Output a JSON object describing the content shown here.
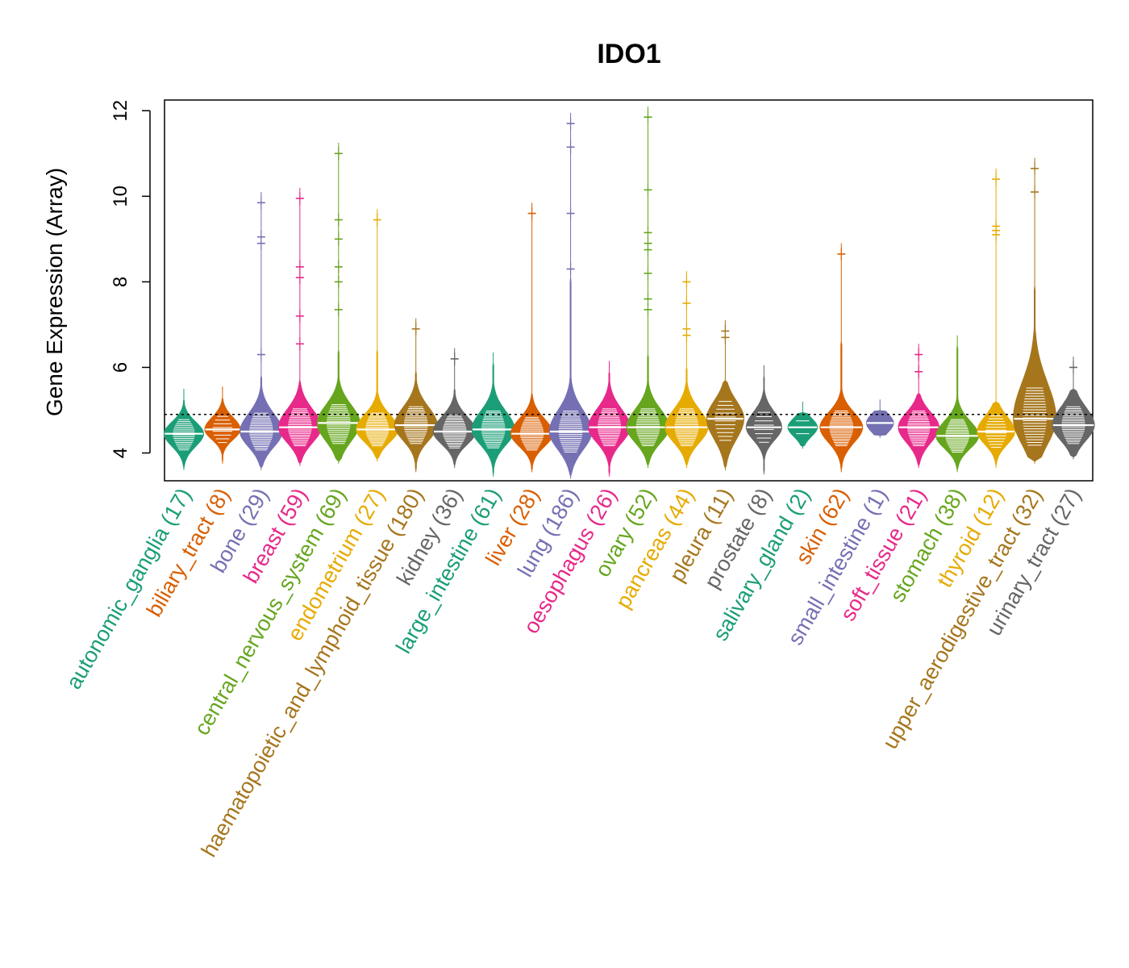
{
  "chart_data": {
    "type": "beanplot",
    "title": "IDO1",
    "ylabel": "Gene Expression (Array)",
    "ylim": [
      3.35,
      12.25
    ],
    "yticks": [
      4,
      6,
      8,
      10,
      12
    ],
    "reference_line": 4.9,
    "grid": false,
    "legend": "none",
    "categories": [
      {
        "name": "autonomic_ganglia",
        "n": "17",
        "label": "autonomic_ganglia (17)",
        "color": "#1B9E77",
        "median": 4.45,
        "q1": 4.2,
        "q3": 4.65,
        "min": 3.65,
        "max": 5.25,
        "outliers": []
      },
      {
        "name": "biliary_tract",
        "n": "8",
        "label": "biliary_tract (8)",
        "color": "#D95F02",
        "median": 4.55,
        "q1": 4.35,
        "q3": 4.75,
        "min": 3.8,
        "max": 5.3,
        "outliers": []
      },
      {
        "name": "bone",
        "n": "29",
        "label": "bone (29)",
        "color": "#7570B3",
        "median": 4.5,
        "q1": 4.2,
        "q3": 4.8,
        "min": 3.65,
        "max": 5.8,
        "outliers": [
          6.3,
          8.9,
          9.05,
          9.85
        ]
      },
      {
        "name": "breast",
        "n": "59",
        "label": "breast (59)",
        "color": "#E7298A",
        "median": 4.6,
        "q1": 4.3,
        "q3": 4.9,
        "min": 3.75,
        "max": 5.7,
        "outliers": [
          6.55,
          7.2,
          8.1,
          8.35,
          9.95
        ]
      },
      {
        "name": "central_nervous_system",
        "n": "69",
        "label": "central_nervous_system (69)",
        "color": "#66A61E",
        "median": 4.7,
        "q1": 4.35,
        "q3": 5.0,
        "min": 3.8,
        "max": 6.4,
        "outliers": [
          7.35,
          8.0,
          8.35,
          9.0,
          9.45,
          11.0
        ]
      },
      {
        "name": "endometrium",
        "n": "27",
        "label": "endometrium (27)",
        "color": "#E6AB02",
        "median": 4.55,
        "q1": 4.3,
        "q3": 4.8,
        "min": 3.85,
        "max": 6.4,
        "outliers": [
          9.45
        ]
      },
      {
        "name": "haematopoietic_and_lymphoid_tissue",
        "n": "180",
        "label": "haematopoietic_and_lymphoid_tissue (180)",
        "color": "#A6761D",
        "median": 4.65,
        "q1": 4.35,
        "q3": 4.95,
        "min": 3.6,
        "max": 5.9,
        "outliers": [
          6.9
        ]
      },
      {
        "name": "kidney",
        "n": "36",
        "label": "kidney (36)",
        "color": "#666666",
        "median": 4.5,
        "q1": 4.25,
        "q3": 4.75,
        "min": 3.7,
        "max": 5.5,
        "outliers": [
          6.2
        ]
      },
      {
        "name": "large_intestine",
        "n": "61",
        "label": "large_intestine (61)",
        "color": "#1B9E77",
        "median": 4.55,
        "q1": 4.25,
        "q3": 4.85,
        "min": 3.5,
        "max": 6.1,
        "outliers": []
      },
      {
        "name": "liver",
        "n": "28",
        "label": "liver (28)",
        "color": "#D95F02",
        "median": 4.45,
        "q1": 4.2,
        "q3": 4.7,
        "min": 3.6,
        "max": 5.4,
        "outliers": [
          9.6
        ]
      },
      {
        "name": "lung",
        "n": "186",
        "label": "lung (186)",
        "color": "#7570B3",
        "median": 4.5,
        "q1": 4.15,
        "q3": 4.85,
        "min": 3.45,
        "max": 8.1,
        "outliers": [
          8.3,
          9.6,
          11.15,
          11.7
        ]
      },
      {
        "name": "oesophagus",
        "n": "26",
        "label": "oesophagus (26)",
        "color": "#E7298A",
        "median": 4.6,
        "q1": 4.3,
        "q3": 4.9,
        "min": 3.5,
        "max": 5.9,
        "outliers": []
      },
      {
        "name": "ovary",
        "n": "52",
        "label": "ovary (52)",
        "color": "#66A61E",
        "median": 4.6,
        "q1": 4.3,
        "q3": 4.9,
        "min": 3.7,
        "max": 6.3,
        "outliers": [
          7.35,
          7.6,
          8.2,
          8.75,
          8.9,
          9.15,
          10.15,
          11.85
        ]
      },
      {
        "name": "pancreas",
        "n": "44",
        "label": "pancreas (44)",
        "color": "#E6AB02",
        "median": 4.6,
        "q1": 4.3,
        "q3": 4.9,
        "min": 3.7,
        "max": 6.0,
        "outliers": [
          6.75,
          6.9,
          7.5,
          8.0
        ]
      },
      {
        "name": "pleura",
        "n": "11",
        "label": "pleura (11)",
        "color": "#A6761D",
        "median": 4.8,
        "q1": 4.4,
        "q3": 5.1,
        "min": 3.65,
        "max": 5.7,
        "outliers": [
          6.7,
          6.85
        ]
      },
      {
        "name": "prostate",
        "n": "8",
        "label": "prostate (8)",
        "color": "#666666",
        "median": 4.6,
        "q1": 4.35,
        "q3": 4.85,
        "min": 3.55,
        "max": 5.8,
        "outliers": []
      },
      {
        "name": "salivary_gland",
        "n": "2",
        "label": "salivary_gland (2)",
        "color": "#1B9E77",
        "median": 4.6,
        "q1": 4.45,
        "q3": 4.75,
        "min": 4.15,
        "max": 4.95,
        "outliers": []
      },
      {
        "name": "skin",
        "n": "62",
        "label": "skin (62)",
        "color": "#D95F02",
        "median": 4.6,
        "q1": 4.3,
        "q3": 4.85,
        "min": 3.6,
        "max": 6.6,
        "outliers": [
          8.65
        ]
      },
      {
        "name": "small_intestine",
        "n": "1",
        "label": "small_intestine (1)",
        "color": "#7570B3",
        "median": 4.7,
        "q1": 4.7,
        "q3": 4.7,
        "min": 4.4,
        "max": 5.0,
        "outliers": []
      },
      {
        "name": "soft_tissue",
        "n": "21",
        "label": "soft_tissue (21)",
        "color": "#E7298A",
        "median": 4.6,
        "q1": 4.3,
        "q3": 4.85,
        "min": 3.7,
        "max": 5.4,
        "outliers": [
          5.9,
          6.3
        ]
      },
      {
        "name": "stomach",
        "n": "38",
        "label": "stomach (38)",
        "color": "#66A61E",
        "median": 4.4,
        "q1": 4.15,
        "q3": 4.65,
        "min": 3.6,
        "max": 6.5,
        "outliers": []
      },
      {
        "name": "thyroid",
        "n": "12",
        "label": "thyroid (12)",
        "color": "#E6AB02",
        "median": 4.5,
        "q1": 4.25,
        "q3": 4.75,
        "min": 3.7,
        "max": 5.2,
        "outliers": [
          9.1,
          9.2,
          9.3,
          10.4
        ]
      },
      {
        "name": "upper_aerodigestive_tract",
        "n": "32",
        "label": "upper_aerodigestive_tract (32)",
        "color": "#A6761D",
        "median": 4.8,
        "q1": 4.3,
        "q3": 5.4,
        "min": 3.8,
        "max": 7.9,
        "outliers": [
          10.1,
          10.65
        ]
      },
      {
        "name": "urinary_tract",
        "n": "27",
        "label": "urinary_tract (27)",
        "color": "#666666",
        "median": 4.65,
        "q1": 4.35,
        "q3": 4.95,
        "min": 3.9,
        "max": 5.5,
        "outliers": [
          6.0
        ]
      }
    ]
  }
}
